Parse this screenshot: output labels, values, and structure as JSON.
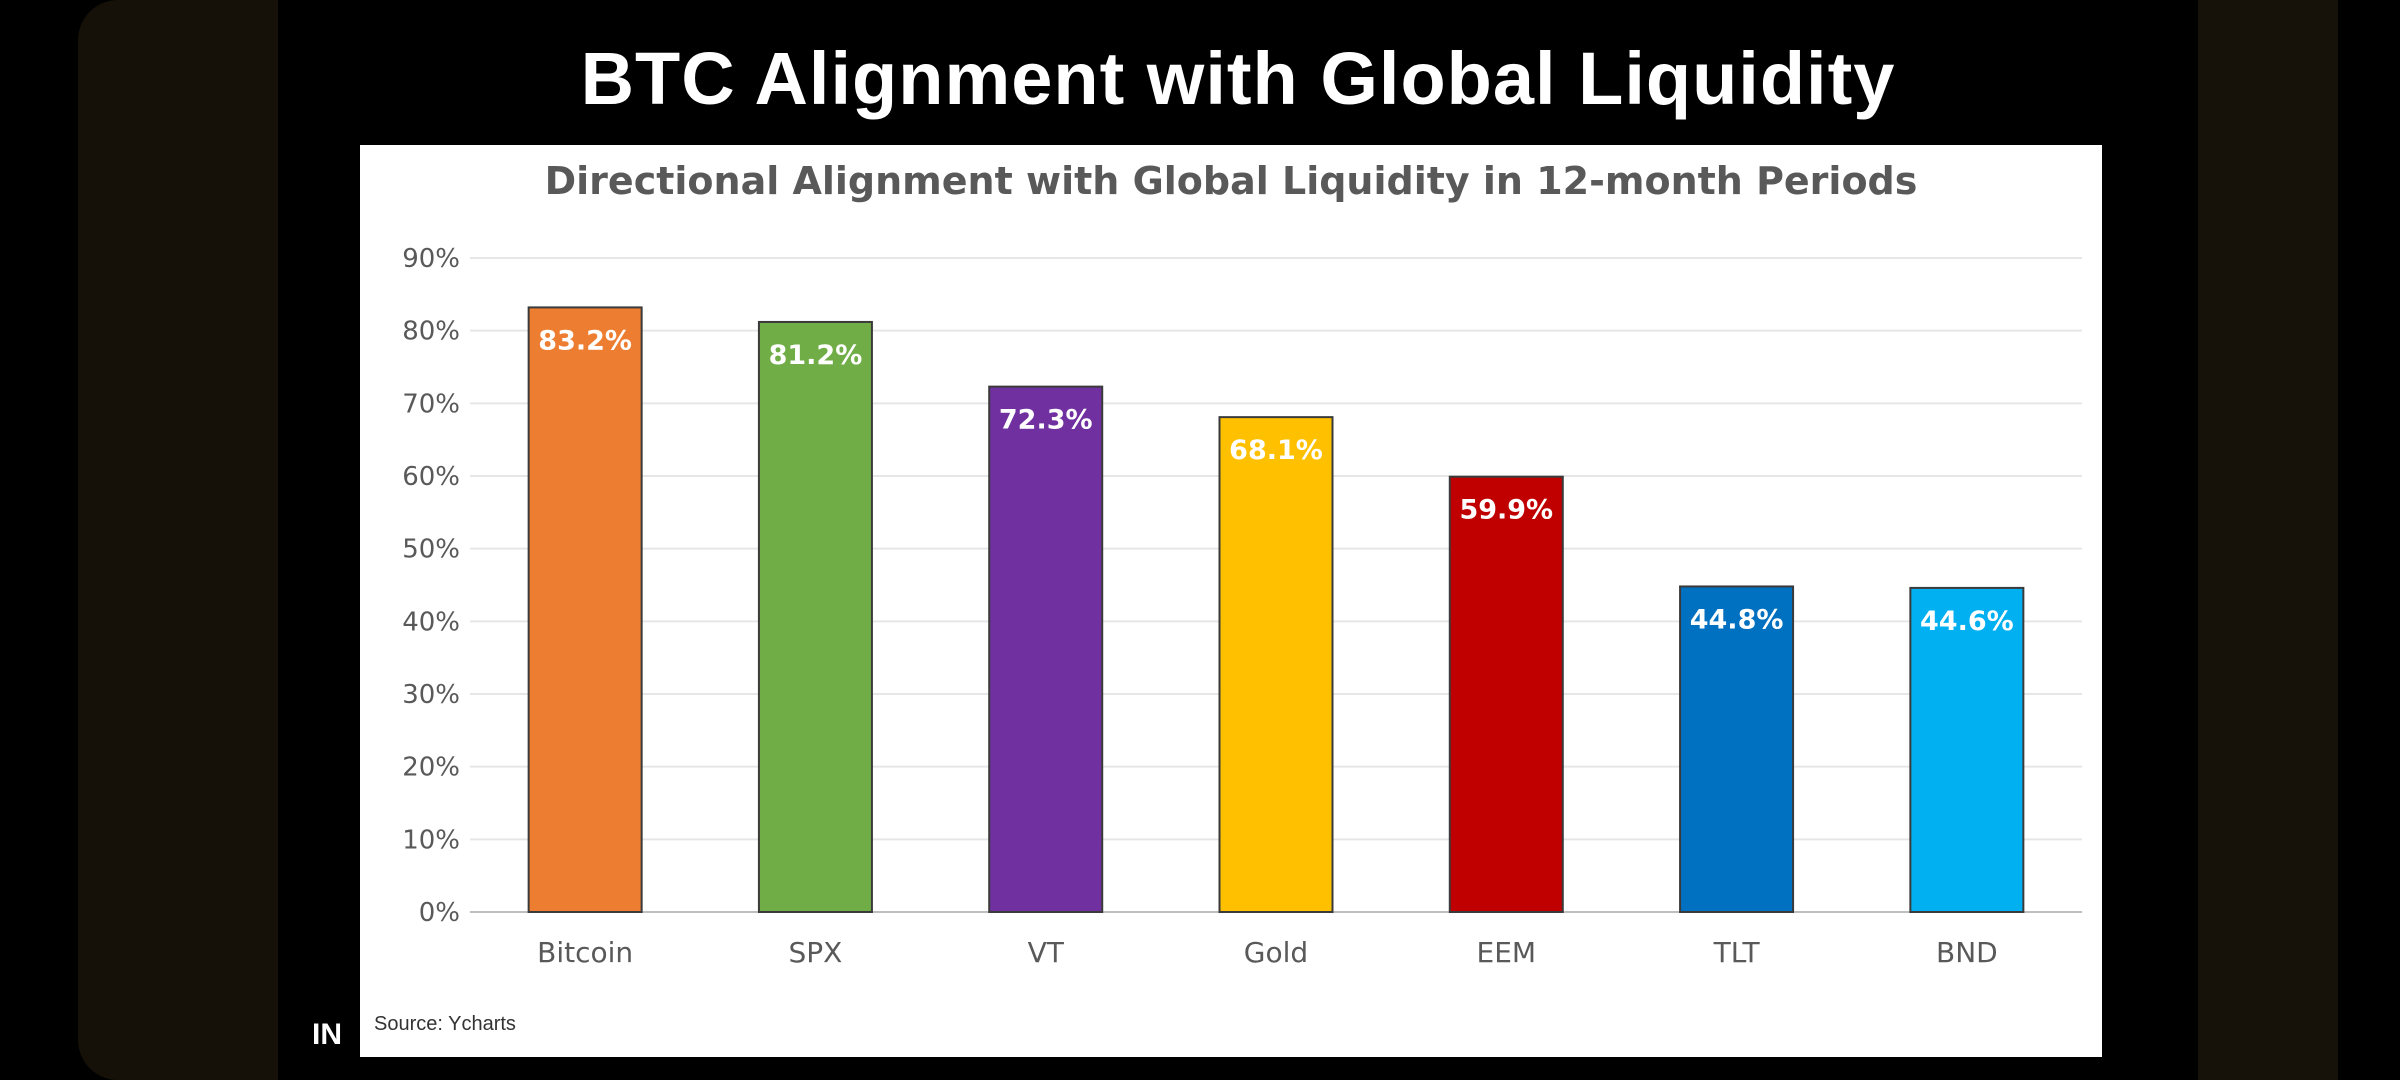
{
  "slide": {
    "title": "BTC Alignment with Global Liquidity",
    "overlay_text": "IN"
  },
  "chart_data": {
    "type": "bar",
    "title": "Directional Alignment with Global Liquidity in 12-month Periods",
    "xlabel": "",
    "ylabel": "",
    "categories": [
      "Bitcoin",
      "SPX",
      "VT",
      "Gold",
      "EEM",
      "TLT",
      "BND"
    ],
    "values": [
      83.2,
      81.2,
      72.3,
      68.1,
      59.9,
      44.8,
      44.6
    ],
    "data_labels": [
      "83.2%",
      "81.2%",
      "72.3%",
      "68.1%",
      "59.9%",
      "44.8%",
      "44.6%"
    ],
    "colors": [
      "#ED7D31",
      "#70AD47",
      "#7030A0",
      "#FFC000",
      "#C00000",
      "#0070C0",
      "#00B0F0"
    ],
    "ylim": [
      0,
      90
    ],
    "yticks": [
      "0%",
      "10%",
      "20%",
      "30%",
      "40%",
      "50%",
      "60%",
      "70%",
      "80%",
      "90%"
    ],
    "grid": true,
    "legend": "none",
    "source": "Source: Ycharts"
  }
}
